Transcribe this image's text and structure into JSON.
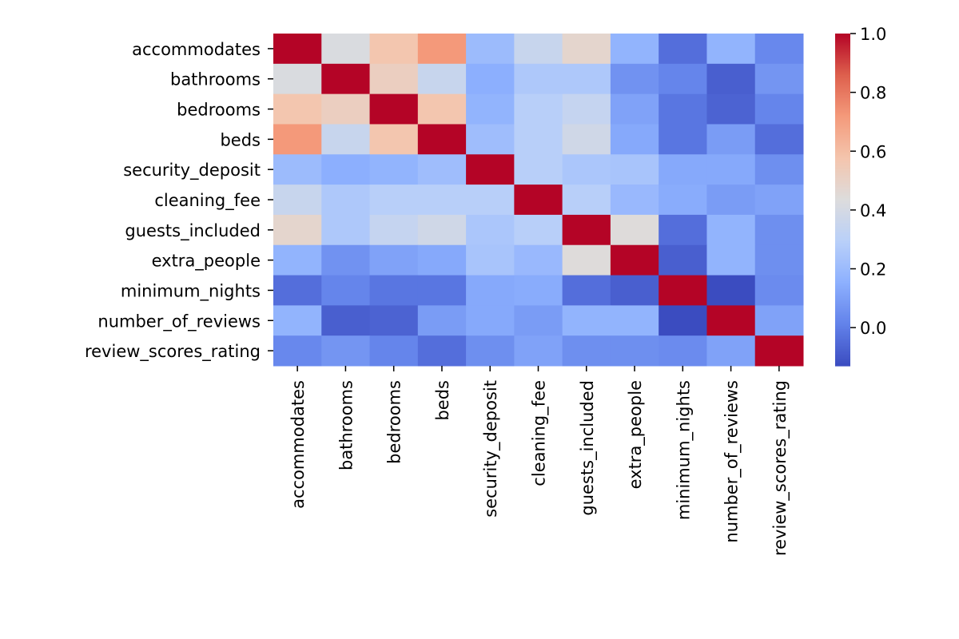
{
  "chart_data": {
    "type": "heatmap",
    "title": "",
    "xlabel": "",
    "ylabel": "",
    "colormap": "coolwarm",
    "color_range": [
      -0.13,
      1.0
    ],
    "colorbar_ticks": [
      "1.0",
      "0.8",
      "0.6",
      "0.4",
      "0.2",
      "0.0"
    ],
    "colorbar_tick_values": [
      1.0,
      0.8,
      0.6,
      0.4,
      0.2,
      0.0
    ],
    "grid": false,
    "labels": [
      "accommodates",
      "bathrooms",
      "bedrooms",
      "beds",
      "security_deposit",
      "cleaning_fee",
      "guests_included",
      "extra_people",
      "minimum_nights",
      "number_of_reviews",
      "review_scores_rating"
    ],
    "values": [
      [
        1.0,
        0.42,
        0.57,
        0.72,
        0.2,
        0.35,
        0.48,
        0.17,
        -0.04,
        0.17,
        0.03
      ],
      [
        0.42,
        1.0,
        0.52,
        0.35,
        0.15,
        0.26,
        0.26,
        0.06,
        0.02,
        -0.08,
        0.07
      ],
      [
        0.57,
        0.52,
        1.0,
        0.57,
        0.17,
        0.29,
        0.34,
        0.11,
        -0.02,
        -0.07,
        0.02
      ],
      [
        0.72,
        0.35,
        0.57,
        1.0,
        0.21,
        0.29,
        0.38,
        0.13,
        -0.02,
        0.09,
        -0.04
      ],
      [
        0.2,
        0.15,
        0.17,
        0.21,
        1.0,
        0.29,
        0.25,
        0.24,
        0.13,
        0.13,
        0.05
      ],
      [
        0.35,
        0.26,
        0.29,
        0.29,
        0.29,
        1.0,
        0.29,
        0.19,
        0.14,
        0.09,
        0.11
      ],
      [
        0.48,
        0.26,
        0.34,
        0.38,
        0.25,
        0.29,
        1.0,
        0.44,
        -0.04,
        0.17,
        0.05
      ],
      [
        0.17,
        0.06,
        0.11,
        0.13,
        0.24,
        0.19,
        0.44,
        1.0,
        -0.08,
        0.17,
        0.05
      ],
      [
        -0.04,
        0.02,
        -0.02,
        -0.02,
        0.13,
        0.14,
        -0.04,
        -0.08,
        1.0,
        -0.13,
        0.04
      ],
      [
        0.17,
        -0.08,
        -0.07,
        0.09,
        0.13,
        0.09,
        0.17,
        0.17,
        -0.13,
        1.0,
        0.11
      ],
      [
        0.03,
        0.07,
        0.02,
        -0.04,
        0.05,
        0.11,
        0.05,
        0.05,
        0.04,
        0.11,
        1.0
      ]
    ]
  }
}
